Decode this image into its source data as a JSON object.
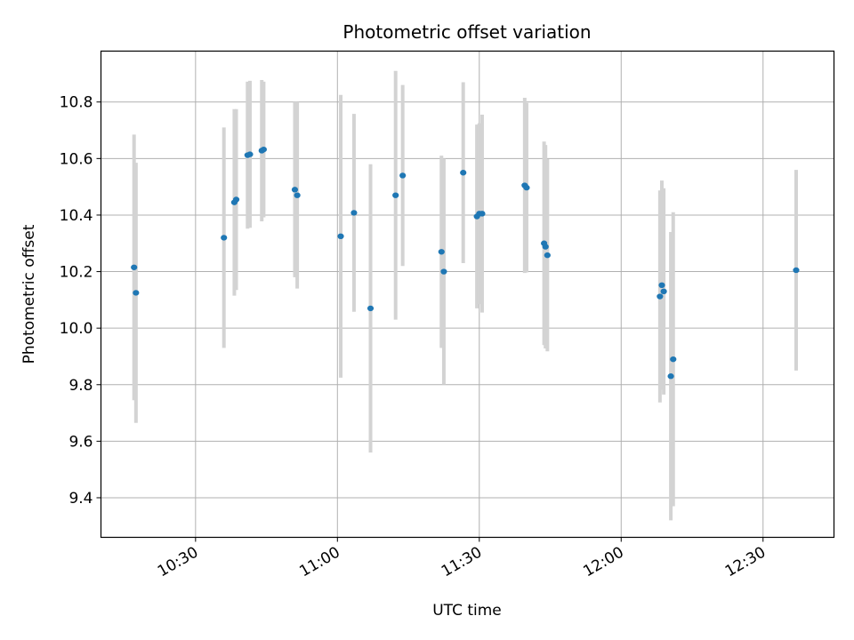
{
  "chart_data": {
    "type": "scatter",
    "title": "Photometric offset variation",
    "xlabel": "UTC time",
    "ylabel": "Photometric offset",
    "grid": true,
    "xlim": [
      "10:10",
      "12:45"
    ],
    "ylim": [
      9.26,
      10.98
    ],
    "xticks": [
      "10:30",
      "11:00",
      "11:30",
      "12:00",
      "12:30"
    ],
    "yticks": [
      9.4,
      9.6,
      9.8,
      10.0,
      10.2,
      10.4,
      10.6,
      10.8
    ],
    "colors": {
      "point": "#1f77b4",
      "errorbar": "#d3d3d3",
      "grid": "#b0b0b0"
    },
    "points": [
      {
        "x": "10:17",
        "y": 10.215,
        "err": 0.47
      },
      {
        "x": "10:17.4",
        "y": 10.125,
        "err": 0.46
      },
      {
        "x": "10:36",
        "y": 10.32,
        "err": 0.39
      },
      {
        "x": "10:38.2",
        "y": 10.445,
        "err": 0.33
      },
      {
        "x": "10:38.6",
        "y": 10.455,
        "err": 0.32
      },
      {
        "x": "10:41",
        "y": 10.612,
        "err": 0.26
      },
      {
        "x": "10:41.5",
        "y": 10.615,
        "err": 0.26
      },
      {
        "x": "10:44",
        "y": 10.628,
        "err": 0.25
      },
      {
        "x": "10:44.4",
        "y": 10.632,
        "err": 0.24
      },
      {
        "x": "10:51",
        "y": 10.49,
        "err": 0.31
      },
      {
        "x": "10:51.5",
        "y": 10.47,
        "err": 0.33
      },
      {
        "x": "11:00.7",
        "y": 10.325,
        "err": 0.5
      },
      {
        "x": "11:03.5",
        "y": 10.408,
        "err": 0.35
      },
      {
        "x": "11:07",
        "y": 10.07,
        "err": 0.51
      },
      {
        "x": "11:12.3",
        "y": 10.47,
        "err": 0.44
      },
      {
        "x": "11:13.8",
        "y": 10.54,
        "err": 0.32
      },
      {
        "x": "11:22",
        "y": 10.27,
        "err": 0.34
      },
      {
        "x": "11:22.5",
        "y": 10.2,
        "err": 0.4
      },
      {
        "x": "11:26.6",
        "y": 10.55,
        "err": 0.32
      },
      {
        "x": "11:29.5",
        "y": 10.395,
        "err": 0.325
      },
      {
        "x": "11:30",
        "y": 10.405,
        "err": 0.32
      },
      {
        "x": "11:30.6",
        "y": 10.405,
        "err": 0.35
      },
      {
        "x": "11:39.6",
        "y": 10.505,
        "err": 0.31
      },
      {
        "x": "11:40",
        "y": 10.497,
        "err": 0.3
      },
      {
        "x": "11:43.7",
        "y": 10.3,
        "err": 0.36
      },
      {
        "x": "11:44",
        "y": 10.288,
        "err": 0.36
      },
      {
        "x": "11:44.4",
        "y": 10.258,
        "err": 0.34
      },
      {
        "x": "12:08.2",
        "y": 10.112,
        "err": 0.375
      },
      {
        "x": "12:08.6",
        "y": 10.152,
        "err": 0.37
      },
      {
        "x": "12:09",
        "y": 10.13,
        "err": 0.365
      },
      {
        "x": "12:10.5",
        "y": 9.83,
        "err": 0.51
      },
      {
        "x": "12:11",
        "y": 9.89,
        "err": 0.52
      },
      {
        "x": "12:37",
        "y": 10.205,
        "err": 0.355
      }
    ]
  }
}
